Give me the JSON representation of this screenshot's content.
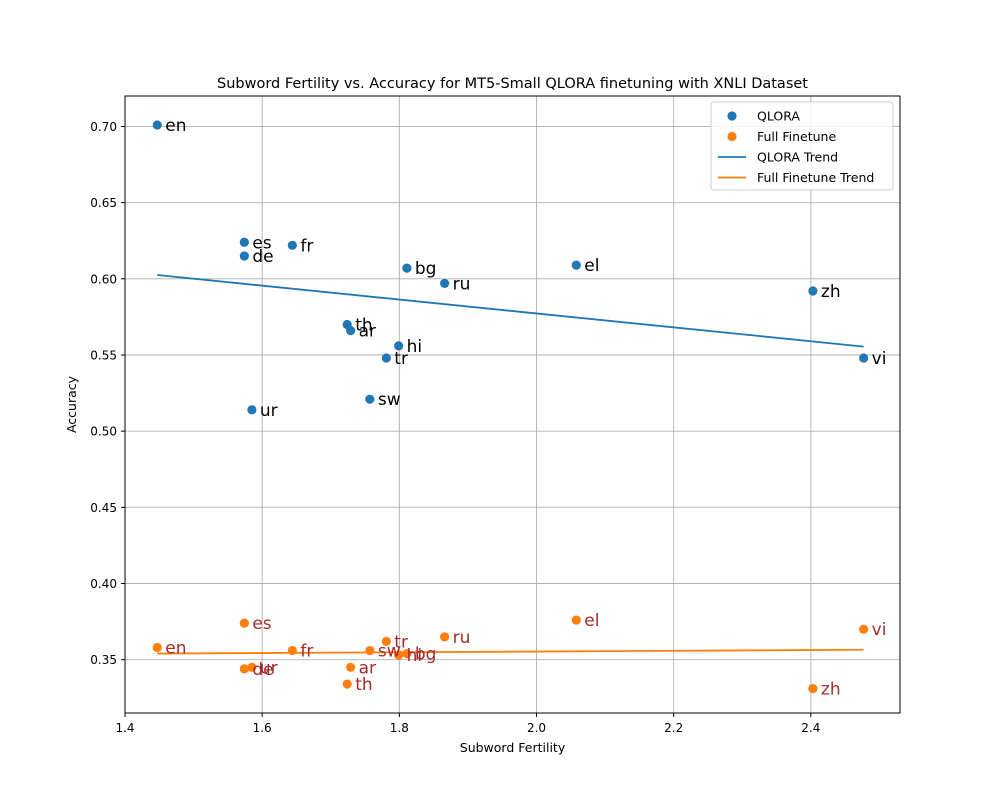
{
  "chart_data": {
    "type": "scatter",
    "title": "Subword Fertility vs. Accuracy for MT5-Small QLORA finetuning with XNLI Dataset",
    "xlabel": "Subword Fertility",
    "ylabel": "Accuracy",
    "xlim": [
      1.4,
      2.53
    ],
    "ylim": [
      0.315,
      0.72
    ],
    "xticks": [
      1.4,
      1.6,
      1.8,
      2.0,
      2.2,
      2.4
    ],
    "yticks": [
      0.35,
      0.4,
      0.45,
      0.5,
      0.55,
      0.6,
      0.65,
      0.7
    ],
    "grid": true,
    "legend_position": "top-right",
    "series": [
      {
        "name": "QLORA",
        "color": "#1f77b4",
        "label_color": "#000000",
        "points": [
          {
            "label": "en",
            "x": 1.447,
            "y": 0.701
          },
          {
            "label": "es",
            "x": 1.574,
            "y": 0.624
          },
          {
            "label": "de",
            "x": 1.574,
            "y": 0.615
          },
          {
            "label": "fr",
            "x": 1.644,
            "y": 0.622
          },
          {
            "label": "th",
            "x": 1.724,
            "y": 0.57
          },
          {
            "label": "ar",
            "x": 1.729,
            "y": 0.566
          },
          {
            "label": "bg",
            "x": 1.811,
            "y": 0.607
          },
          {
            "label": "ru",
            "x": 1.866,
            "y": 0.597
          },
          {
            "label": "el",
            "x": 2.058,
            "y": 0.609
          },
          {
            "label": "zh",
            "x": 2.403,
            "y": 0.592
          },
          {
            "label": "hi",
            "x": 1.799,
            "y": 0.556
          },
          {
            "label": "tr",
            "x": 1.781,
            "y": 0.548
          },
          {
            "label": "vi",
            "x": 2.477,
            "y": 0.548
          },
          {
            "label": "sw",
            "x": 1.757,
            "y": 0.521
          },
          {
            "label": "ur",
            "x": 1.585,
            "y": 0.514
          }
        ]
      },
      {
        "name": "Full Finetune",
        "color": "#ff7f0e",
        "label_color": "#a52a2a",
        "points": [
          {
            "label": "es",
            "x": 1.574,
            "y": 0.374
          },
          {
            "label": "el",
            "x": 2.058,
            "y": 0.376
          },
          {
            "label": "vi",
            "x": 2.477,
            "y": 0.37
          },
          {
            "label": "ru",
            "x": 1.866,
            "y": 0.365
          },
          {
            "label": "tr",
            "x": 1.781,
            "y": 0.362
          },
          {
            "label": "en",
            "x": 1.447,
            "y": 0.358
          },
          {
            "label": "fr",
            "x": 1.644,
            "y": 0.356
          },
          {
            "label": "sw",
            "x": 1.757,
            "y": 0.356
          },
          {
            "label": "hi",
            "x": 1.799,
            "y": 0.353
          },
          {
            "label": "bg",
            "x": 1.811,
            "y": 0.354
          },
          {
            "label": "de",
            "x": 1.574,
            "y": 0.344
          },
          {
            "label": "ur",
            "x": 1.585,
            "y": 0.345
          },
          {
            "label": "ar",
            "x": 1.729,
            "y": 0.345
          },
          {
            "label": "th",
            "x": 1.724,
            "y": 0.334
          },
          {
            "label": "zh",
            "x": 2.403,
            "y": 0.331
          }
        ]
      }
    ],
    "trend_lines": [
      {
        "name": "QLORA Trend",
        "color": "#1f77b4",
        "x": [
          1.447,
          2.477
        ],
        "y": [
          0.6025,
          0.5555
        ]
      },
      {
        "name": "Full Finetune Trend",
        "color": "#ff7f0e",
        "x": [
          1.447,
          2.477
        ],
        "y": [
          0.354,
          0.3565
        ]
      }
    ]
  }
}
